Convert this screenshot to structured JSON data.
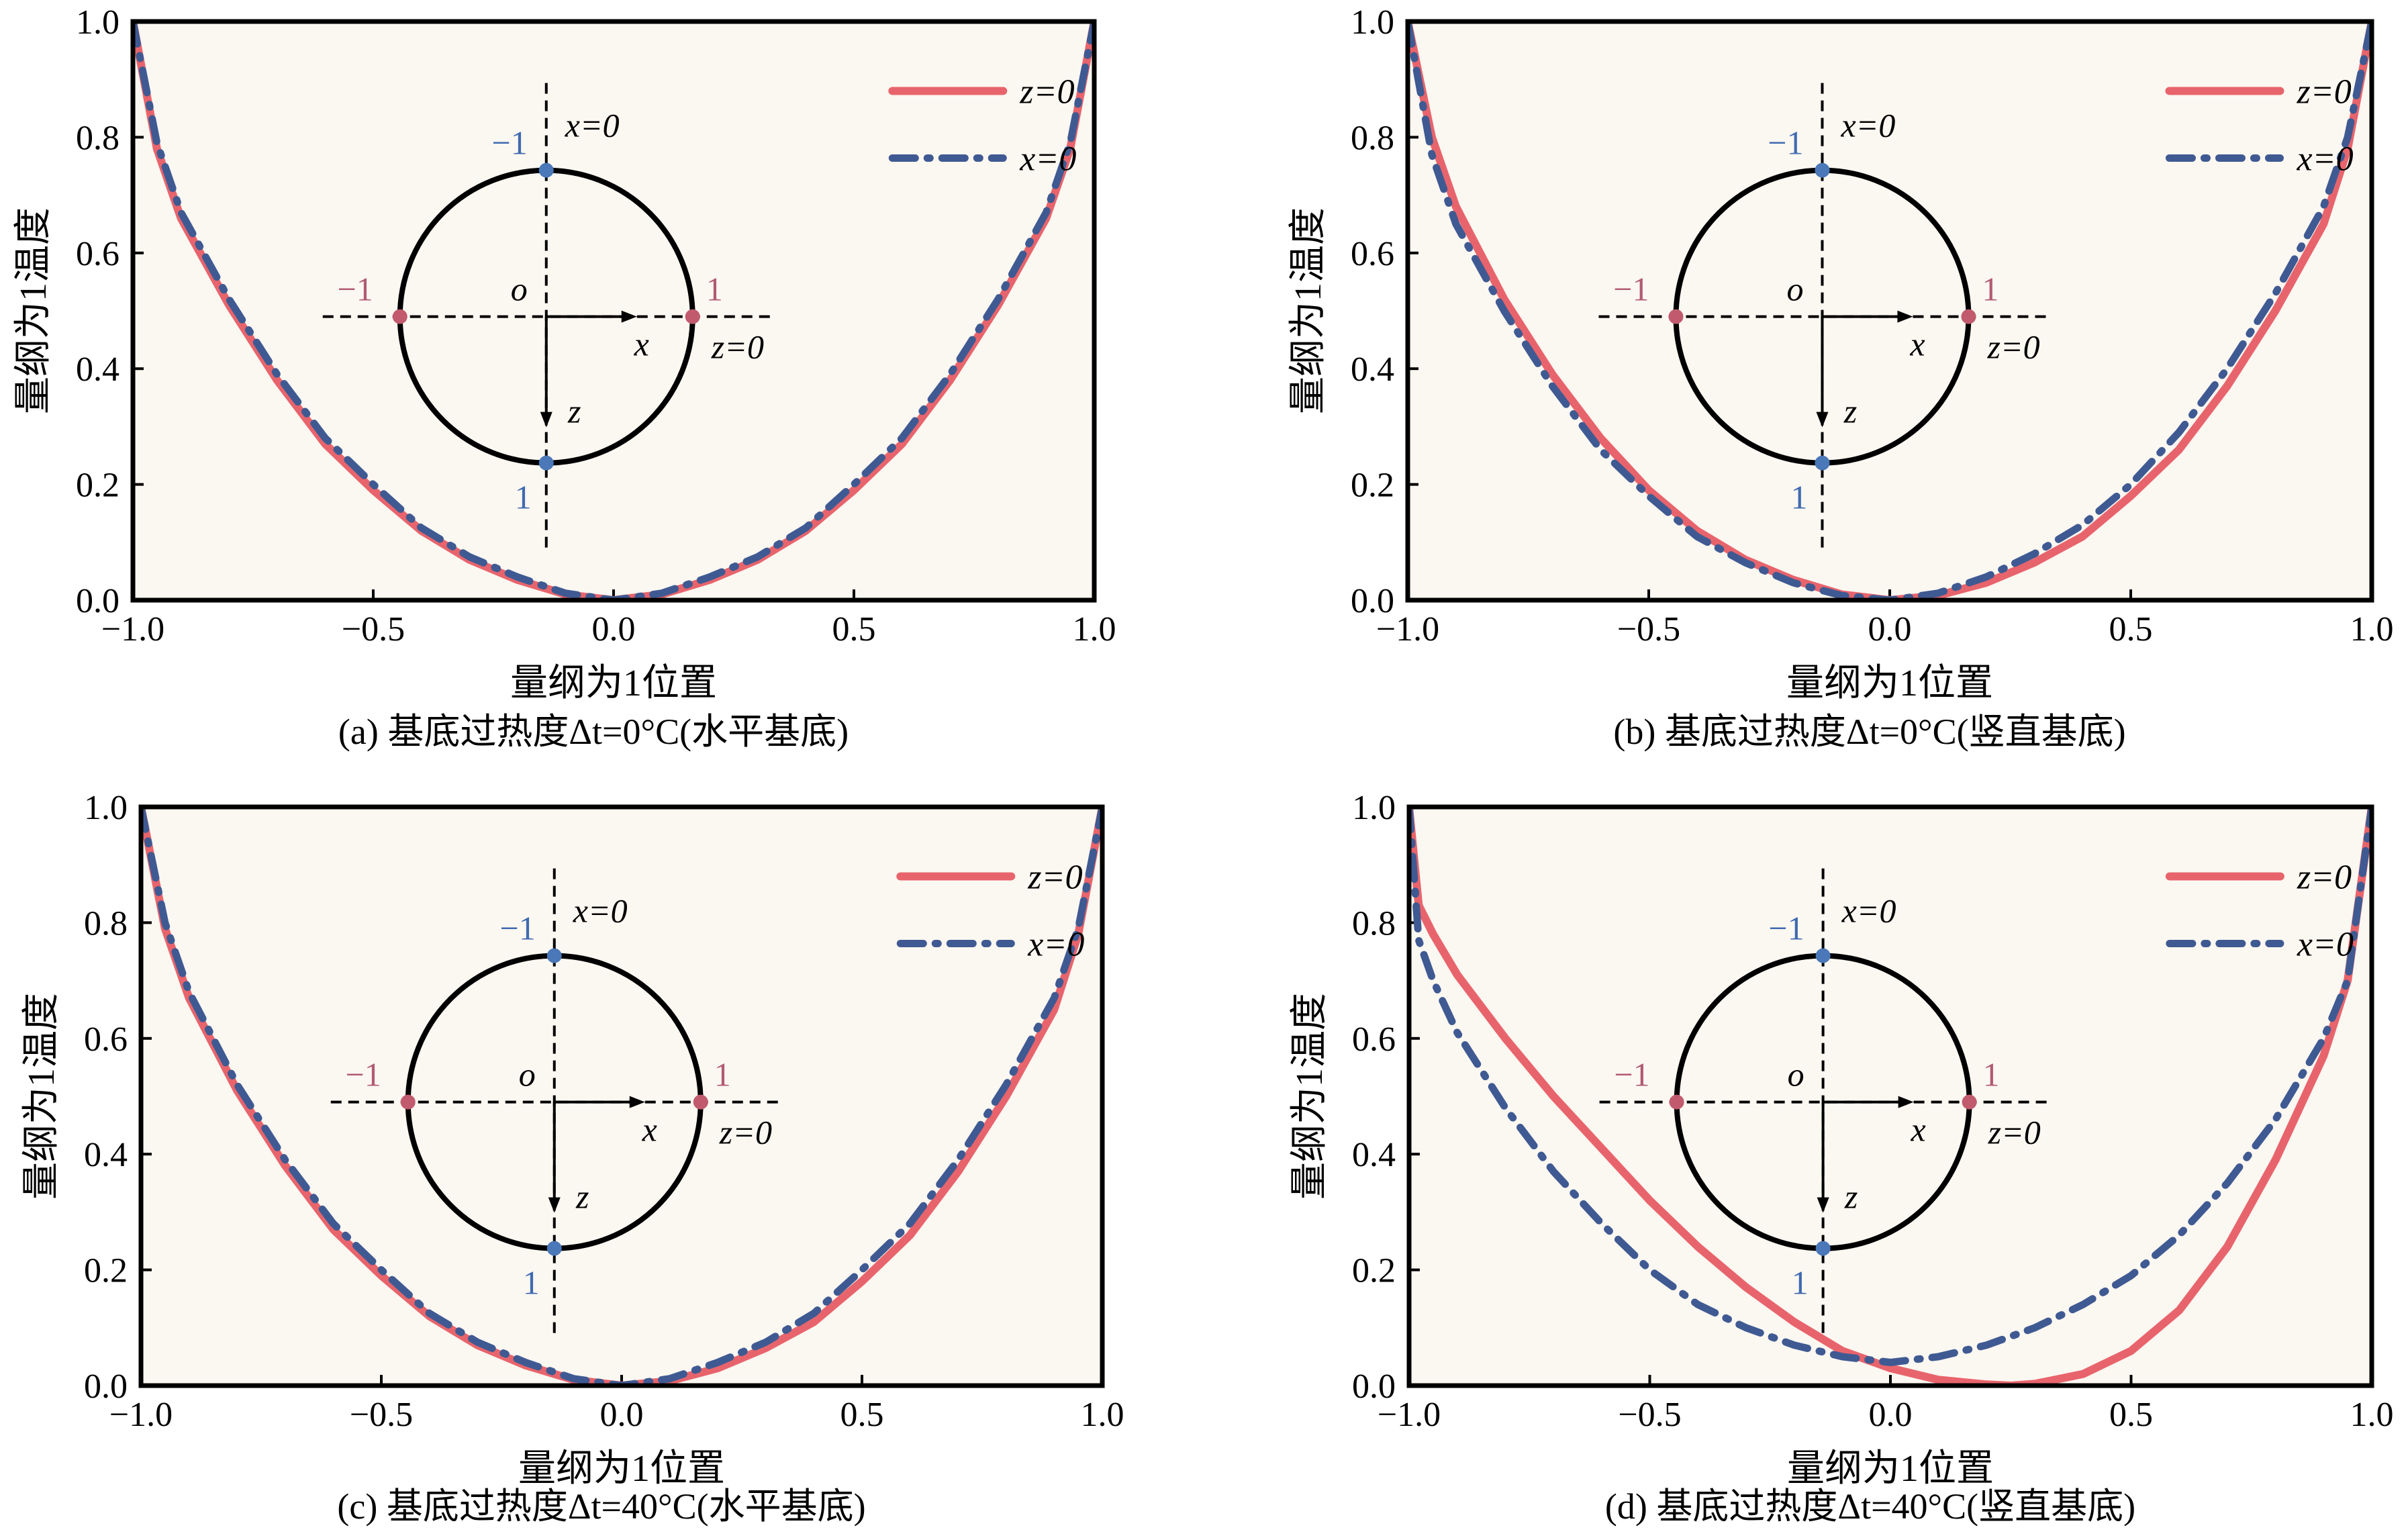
{
  "colors": {
    "z_series": "#e8646c",
    "x_series": "#3f5a92",
    "point_blue": "#4a78b8",
    "point_red": "#c25a6e",
    "label_blue": "#3f6ab0",
    "label_red": "#b25a72",
    "plot_bg": "#fbf7f1"
  },
  "chart_data": [
    {
      "type": "line",
      "panel_id": "a",
      "caption": "(a) 基底过热度Δt=0°C(水平基底)",
      "xlabel": "量纲为1位置",
      "ylabel": "量纲为1温度",
      "xlim": [
        -1.0,
        1.0
      ],
      "ylim": [
        0.0,
        1.0
      ],
      "xticks": [
        "−1.0",
        "−0.5",
        "0.0",
        "0.5",
        "1.0"
      ],
      "yticks": [
        "0.0",
        "0.2",
        "0.4",
        "0.6",
        "0.8",
        "1.0"
      ],
      "legend_position": "top-right",
      "series": [
        {
          "name": "z=0",
          "style": "solid",
          "x": [
            -1.0,
            -0.95,
            -0.9,
            -0.8,
            -0.7,
            -0.6,
            -0.5,
            -0.4,
            -0.3,
            -0.2,
            -0.1,
            0.0,
            0.1,
            0.2,
            0.3,
            0.4,
            0.5,
            0.6,
            0.7,
            0.8,
            0.9,
            0.95,
            1.0
          ],
          "y": [
            1.0,
            0.78,
            0.66,
            0.51,
            0.38,
            0.27,
            0.19,
            0.12,
            0.07,
            0.035,
            0.01,
            0.0,
            0.01,
            0.035,
            0.07,
            0.12,
            0.19,
            0.27,
            0.38,
            0.51,
            0.66,
            0.78,
            1.0
          ]
        },
        {
          "name": "x=0",
          "style": "dashdot",
          "x": [
            -1.0,
            -0.95,
            -0.9,
            -0.8,
            -0.7,
            -0.6,
            -0.5,
            -0.4,
            -0.3,
            -0.2,
            -0.1,
            0.0,
            0.1,
            0.2,
            0.3,
            0.4,
            0.5,
            0.6,
            0.7,
            0.8,
            0.9,
            0.95,
            1.0
          ],
          "y": [
            1.0,
            0.79,
            0.67,
            0.52,
            0.39,
            0.28,
            0.2,
            0.125,
            0.075,
            0.04,
            0.012,
            0.0,
            0.012,
            0.04,
            0.075,
            0.125,
            0.2,
            0.28,
            0.39,
            0.52,
            0.67,
            0.79,
            1.0
          ]
        }
      ],
      "inset": {
        "label_top": "−1",
        "label_bottom": "1",
        "label_left": "−1",
        "label_right": "1",
        "label_origin": "o",
        "label_x_axis": "x",
        "label_z_axis": "z",
        "label_x0": "x=0",
        "label_z0": "z=0"
      }
    },
    {
      "type": "line",
      "panel_id": "b",
      "caption": "(b) 基底过热度Δt=0°C(竖直基底)",
      "xlabel": "量纲为1位置",
      "ylabel": "量纲为1温度",
      "xlim": [
        -1.0,
        1.0
      ],
      "ylim": [
        0.0,
        1.0
      ],
      "xticks": [
        "−1.0",
        "−0.5",
        "0.0",
        "0.5",
        "1.0"
      ],
      "yticks": [
        "0.0",
        "0.2",
        "0.4",
        "0.6",
        "0.8",
        "1.0"
      ],
      "legend_position": "top-right",
      "series": [
        {
          "name": "z=0",
          "style": "solid",
          "x": [
            -1.0,
            -0.95,
            -0.9,
            -0.8,
            -0.7,
            -0.6,
            -0.5,
            -0.4,
            -0.3,
            -0.2,
            -0.1,
            0.0,
            0.1,
            0.2,
            0.3,
            0.4,
            0.5,
            0.6,
            0.7,
            0.8,
            0.9,
            0.95,
            1.0
          ],
          "y": [
            1.0,
            0.8,
            0.68,
            0.52,
            0.39,
            0.28,
            0.19,
            0.12,
            0.07,
            0.035,
            0.01,
            0.0,
            0.008,
            0.03,
            0.065,
            0.11,
            0.18,
            0.26,
            0.37,
            0.5,
            0.65,
            0.78,
            1.0
          ]
        },
        {
          "name": "x=0",
          "style": "dashdot",
          "x": [
            -1.0,
            -0.95,
            -0.9,
            -0.8,
            -0.7,
            -0.6,
            -0.5,
            -0.4,
            -0.3,
            -0.2,
            -0.1,
            0.0,
            0.1,
            0.2,
            0.3,
            0.4,
            0.5,
            0.6,
            0.7,
            0.8,
            0.9,
            0.95,
            1.0
          ],
          "y": [
            1.0,
            0.77,
            0.65,
            0.5,
            0.37,
            0.26,
            0.18,
            0.11,
            0.065,
            0.03,
            0.008,
            0.0,
            0.012,
            0.04,
            0.08,
            0.13,
            0.2,
            0.29,
            0.4,
            0.53,
            0.68,
            0.8,
            1.0
          ]
        }
      ],
      "inset": {
        "label_top": "−1",
        "label_bottom": "1",
        "label_left": "−1",
        "label_right": "1",
        "label_origin": "o",
        "label_x_axis": "x",
        "label_z_axis": "z",
        "label_x0": "x=0",
        "label_z0": "z=0"
      }
    },
    {
      "type": "line",
      "panel_id": "c",
      "caption": "(c) 基底过热度Δt=40°C(水平基底)",
      "xlabel": "量纲为1位置",
      "ylabel": "量纲为1温度",
      "xlim": [
        -1.0,
        1.0
      ],
      "ylim": [
        0.0,
        1.0
      ],
      "xticks": [
        "−1.0",
        "−0.5",
        "0.0",
        "0.5",
        "1.0"
      ],
      "yticks": [
        "0.0",
        "0.2",
        "0.4",
        "0.6",
        "0.8",
        "1.0"
      ],
      "legend_position": "top-right",
      "series": [
        {
          "name": "z=0",
          "style": "solid",
          "x": [
            -1.0,
            -0.95,
            -0.9,
            -0.8,
            -0.7,
            -0.6,
            -0.5,
            -0.4,
            -0.3,
            -0.2,
            -0.1,
            0.0,
            0.1,
            0.2,
            0.3,
            0.4,
            0.5,
            0.6,
            0.7,
            0.8,
            0.9,
            0.95,
            1.0
          ],
          "y": [
            1.0,
            0.79,
            0.67,
            0.51,
            0.38,
            0.27,
            0.19,
            0.12,
            0.07,
            0.035,
            0.01,
            0.0,
            0.008,
            0.03,
            0.065,
            0.11,
            0.18,
            0.26,
            0.37,
            0.5,
            0.65,
            0.78,
            1.0
          ]
        },
        {
          "name": "x=0",
          "style": "dashdot",
          "x": [
            -1.0,
            -0.95,
            -0.9,
            -0.8,
            -0.7,
            -0.6,
            -0.5,
            -0.4,
            -0.3,
            -0.2,
            -0.1,
            0.0,
            0.1,
            0.2,
            0.3,
            0.4,
            0.5,
            0.6,
            0.7,
            0.8,
            0.9,
            0.95,
            1.0
          ],
          "y": [
            1.0,
            0.8,
            0.68,
            0.52,
            0.39,
            0.28,
            0.2,
            0.125,
            0.075,
            0.04,
            0.012,
            0.0,
            0.012,
            0.04,
            0.075,
            0.125,
            0.2,
            0.28,
            0.39,
            0.52,
            0.67,
            0.79,
            1.0
          ]
        }
      ],
      "inset": {
        "label_top": "−1",
        "label_bottom": "1",
        "label_left": "−1",
        "label_right": "1",
        "label_origin": "o",
        "label_x_axis": "x",
        "label_z_axis": "z",
        "label_x0": "x=0",
        "label_z0": "z=0"
      }
    },
    {
      "type": "line",
      "panel_id": "d",
      "caption": "(d) 基底过热度Δt=40°C(竖直基底)",
      "xlabel": "量纲为1位置",
      "ylabel": "量纲为1温度",
      "xlim": [
        -1.0,
        1.0
      ],
      "ylim": [
        0.0,
        1.0
      ],
      "xticks": [
        "−1.0",
        "−0.5",
        "0.0",
        "0.5",
        "1.0"
      ],
      "yticks": [
        "0.0",
        "0.2",
        "0.4",
        "0.6",
        "0.8",
        "1.0"
      ],
      "legend_position": "top-right",
      "series": [
        {
          "name": "z=0",
          "style": "solid",
          "x": [
            -1.0,
            -0.98,
            -0.95,
            -0.9,
            -0.8,
            -0.7,
            -0.6,
            -0.5,
            -0.4,
            -0.3,
            -0.2,
            -0.1,
            0.0,
            0.1,
            0.2,
            0.25,
            0.3,
            0.4,
            0.5,
            0.6,
            0.7,
            0.8,
            0.9,
            0.95,
            1.0
          ],
          "y": [
            1.0,
            0.83,
            0.78,
            0.71,
            0.6,
            0.5,
            0.41,
            0.32,
            0.24,
            0.17,
            0.11,
            0.06,
            0.03,
            0.01,
            0.002,
            0.0,
            0.003,
            0.02,
            0.06,
            0.13,
            0.24,
            0.39,
            0.57,
            0.7,
            1.0
          ]
        },
        {
          "name": "x=0",
          "style": "dashdot",
          "x": [
            -1.0,
            -0.98,
            -0.95,
            -0.9,
            -0.8,
            -0.7,
            -0.6,
            -0.5,
            -0.4,
            -0.3,
            -0.2,
            -0.1,
            0.0,
            0.1,
            0.2,
            0.3,
            0.4,
            0.5,
            0.6,
            0.7,
            0.8,
            0.9,
            0.95,
            1.0
          ],
          "y": [
            1.0,
            0.77,
            0.7,
            0.61,
            0.48,
            0.37,
            0.28,
            0.2,
            0.14,
            0.1,
            0.07,
            0.05,
            0.04,
            0.05,
            0.07,
            0.1,
            0.14,
            0.19,
            0.26,
            0.35,
            0.46,
            0.6,
            0.7,
            1.0
          ]
        }
      ],
      "inset": {
        "label_top": "−1",
        "label_bottom": "1",
        "label_left": "−1",
        "label_right": "1",
        "label_origin": "o",
        "label_x_axis": "x",
        "label_z_axis": "z",
        "label_x0": "x=0",
        "label_z0": "z=0"
      }
    }
  ]
}
